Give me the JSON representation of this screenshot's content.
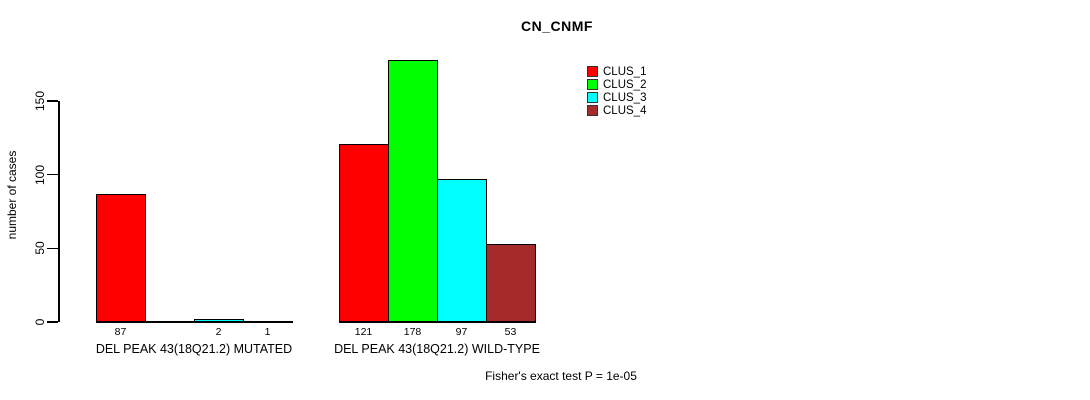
{
  "chart_data": {
    "type": "bar",
    "title": "CN_CNMF",
    "xlabel": "",
    "ylabel": "number of cases",
    "annotation": "Fisher's exact test P = 1e-05",
    "yticks": [
      0,
      50,
      100,
      150
    ],
    "ylim": [
      0,
      150
    ],
    "grid": false,
    "legend_position": "top-right",
    "bar_border_color": "#000000",
    "series": [
      {
        "name": "CLUS_1",
        "color": "#ff0000"
      },
      {
        "name": "CLUS_2",
        "color": "#00ff00"
      },
      {
        "name": "CLUS_3",
        "color": "#00ffff"
      },
      {
        "name": "CLUS_4",
        "color": "#a52a2a"
      }
    ],
    "groups": [
      {
        "label": "DEL PEAK 43(18Q21.2) MUTATED",
        "values": [
          87,
          0,
          2,
          1
        ],
        "value_labels": [
          "87",
          "",
          "2",
          "1"
        ]
      },
      {
        "label": "DEL PEAK 43(18Q21.2) WILD-TYPE",
        "values": [
          121,
          178,
          97,
          53
        ],
        "value_labels": [
          "121",
          "178",
          "97",
          "53"
        ]
      }
    ]
  }
}
